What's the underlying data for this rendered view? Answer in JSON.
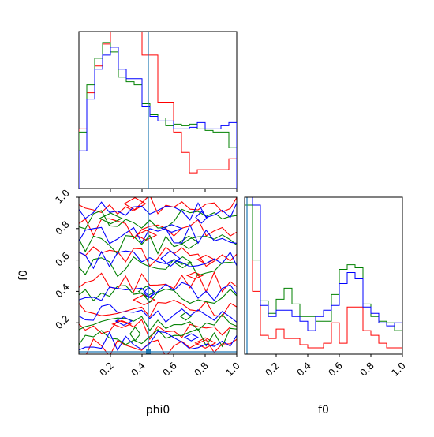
{
  "chart_data": [
    {
      "panel": "phi0 marginal histogram",
      "type": "histogram",
      "xlim": [
        0,
        1
      ],
      "bin_edges": [
        0,
        0.05,
        0.1,
        0.15,
        0.2,
        0.25,
        0.3,
        0.35,
        0.4,
        0.45,
        0.5,
        0.55,
        0.6,
        0.65,
        0.7,
        0.75,
        0.8,
        0.85,
        0.9,
        0.95,
        1.0
      ],
      "truth_x": 0.44,
      "series": [
        {
          "color": "#ff0000",
          "counts": [
            0.38,
            0.61,
            0.78,
            0.92,
            1.05,
            1.05,
            1.05,
            1.05,
            0.85,
            0.85,
            0.55,
            0.55,
            0.36,
            0.23,
            0.1,
            0.12,
            0.12,
            0.12,
            0.12,
            0.19
          ]
        },
        {
          "color": "#008000",
          "counts": [
            0.36,
            0.66,
            0.83,
            0.93,
            0.87,
            0.71,
            0.68,
            0.66,
            0.54,
            0.47,
            0.45,
            0.4,
            0.41,
            0.4,
            0.41,
            0.38,
            0.37,
            0.36,
            0.36,
            0.26
          ]
        },
        {
          "color": "#0000ff",
          "counts": [
            0.24,
            0.57,
            0.76,
            0.85,
            0.9,
            0.76,
            0.7,
            0.7,
            0.52,
            0.46,
            0.43,
            0.43,
            0.38,
            0.38,
            0.39,
            0.42,
            0.38,
            0.38,
            0.4,
            0.42
          ]
        }
      ]
    },
    {
      "panel": "f0 marginal histogram",
      "type": "histogram",
      "xlim": [
        0,
        1
      ],
      "xticks": [
        "0.2",
        "0.4",
        "0.6",
        "0.8",
        "1.0"
      ],
      "xlabel": "f0",
      "bin_edges": [
        0,
        0.05,
        0.1,
        0.15,
        0.2,
        0.25,
        0.3,
        0.35,
        0.4,
        0.45,
        0.5,
        0.55,
        0.6,
        0.65,
        0.7,
        0.75,
        0.8,
        0.85,
        0.9,
        0.95,
        1.0
      ],
      "truth_x": 0.015,
      "series": [
        {
          "color": "#ff0000",
          "counts": [
            1.1,
            0.4,
            0.12,
            0.1,
            0.16,
            0.1,
            0.1,
            0.06,
            0.04,
            0.04,
            0.07,
            0.2,
            0.07,
            0.3,
            0.3,
            0.15,
            0.12,
            0.07,
            0.04,
            0.04
          ]
        },
        {
          "color": "#008000",
          "counts": [
            0.95,
            0.6,
            0.34,
            0.26,
            0.35,
            0.42,
            0.32,
            0.24,
            0.24,
            0.21,
            0.21,
            0.38,
            0.54,
            0.57,
            0.55,
            0.32,
            0.24,
            0.21,
            0.2,
            0.15
          ]
        },
        {
          "color": "#0000ff",
          "counts": [
            1.05,
            0.95,
            0.31,
            0.24,
            0.28,
            0.28,
            0.24,
            0.21,
            0.15,
            0.24,
            0.28,
            0.31,
            0.45,
            0.52,
            0.48,
            0.3,
            0.26,
            0.2,
            0.18,
            0.2
          ]
        }
      ]
    },
    {
      "panel": "phi0 vs f0 contours",
      "type": "contour",
      "xlim": [
        0,
        1
      ],
      "ylim": [
        0,
        1
      ],
      "xticks": [
        "0.2",
        "0.4",
        "0.6",
        "0.8",
        "1.0"
      ],
      "yticks": [
        "0.2",
        "0.4",
        "0.6",
        "0.8",
        "1.0"
      ],
      "xlabel": "phi0",
      "ylabel": "f0",
      "truth_x": 0.44,
      "truth_y": 0.015,
      "series": [
        {
          "color": "#ff0000",
          "levels": [
            0.04,
            0.16,
            0.3,
            0.46,
            0.62,
            0.8,
            0.95
          ]
        },
        {
          "color": "#008000",
          "levels": [
            0.1,
            0.2,
            0.38,
            0.56,
            0.7,
            0.86
          ]
        },
        {
          "color": "#0000ff",
          "levels": [
            0.08,
            0.26,
            0.4,
            0.6,
            0.76,
            0.92
          ]
        }
      ]
    }
  ]
}
